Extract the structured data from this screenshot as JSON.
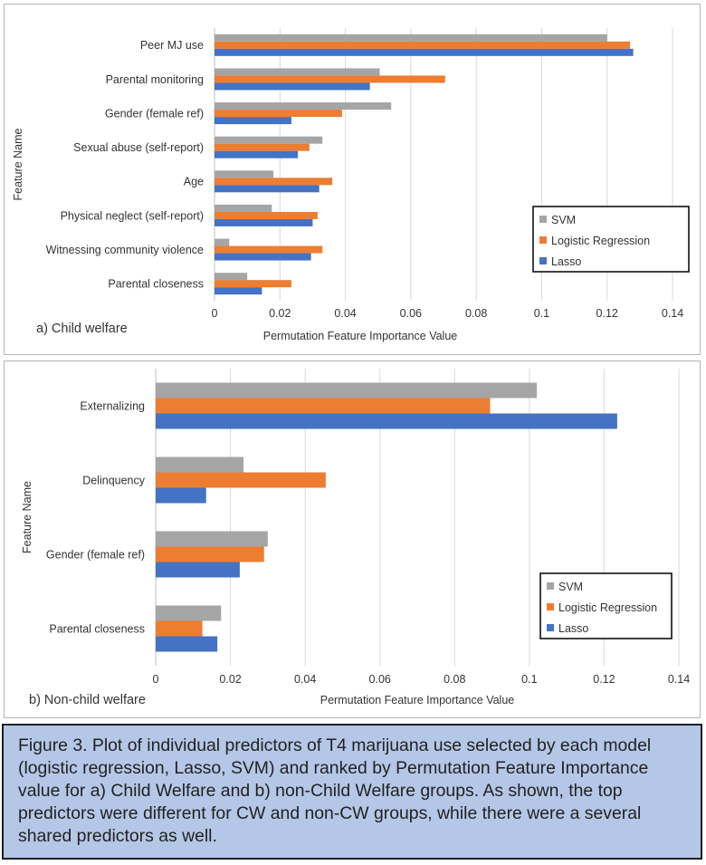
{
  "chart_data": [
    {
      "type": "bar",
      "orientation": "horizontal",
      "panel_label": "a) Child welfare",
      "xlabel": "Permutation Feature Importance Value",
      "ylabel": "Feature Name",
      "xlim": [
        0,
        0.14
      ],
      "xticks": [
        "0",
        "0.02",
        "0.04",
        "0.06",
        "0.08",
        "0.1",
        "0.12",
        "0.14"
      ],
      "grid": "vertical",
      "legend_position": "right",
      "categories": [
        "Peer MJ use",
        "Parental monitoring",
        "Gender (female ref)",
        "Sexual abuse (self-report)",
        "Age",
        "Physical neglect (self-report)",
        "Witnessing community violence",
        "Parental closeness"
      ],
      "series": [
        {
          "name": "SVM",
          "color": "#a5a5a5",
          "values": [
            0.12,
            0.0505,
            0.054,
            0.033,
            0.018,
            0.0175,
            0.0045,
            0.01
          ]
        },
        {
          "name": "Logistic Regression",
          "color": "#ed7d31",
          "values": [
            0.127,
            0.0705,
            0.039,
            0.029,
            0.036,
            0.0315,
            0.033,
            0.0235
          ]
        },
        {
          "name": "Lasso",
          "color": "#4472c4",
          "values": [
            0.128,
            0.0475,
            0.0235,
            0.0255,
            0.032,
            0.03,
            0.0295,
            0.0145
          ]
        }
      ]
    },
    {
      "type": "bar",
      "orientation": "horizontal",
      "panel_label": "b) Non-child welfare",
      "xlabel": "Permutation Feature Importance Value",
      "ylabel": "Feature Name",
      "xlim": [
        0,
        0.14
      ],
      "xticks": [
        "0",
        "0.02",
        "0.04",
        "0.06",
        "0.08",
        "0.1",
        "0.12",
        "0.14"
      ],
      "grid": "vertical",
      "legend_position": "bottom-right",
      "categories": [
        "Externalizing",
        "Delinquency",
        "Gender (female ref)",
        "Parental closeness"
      ],
      "series": [
        {
          "name": "SVM",
          "color": "#a5a5a5",
          "values": [
            0.102,
            0.0235,
            0.03,
            0.0175
          ]
        },
        {
          "name": "Logistic Regression",
          "color": "#ed7d31",
          "values": [
            0.0895,
            0.0455,
            0.029,
            0.0125
          ]
        },
        {
          "name": "Lasso",
          "color": "#4472c4",
          "values": [
            0.1235,
            0.0135,
            0.0225,
            0.0165
          ]
        }
      ]
    }
  ],
  "caption": "Figure 3. Plot of individual predictors of T4 marijuana use selected by each model (logistic regression, Lasso, SVM) and ranked by Permutation Feature Importance value for a) Child Welfare and b) non-Child Welfare groups. As shown, the top predictors were different for CW and non-CW groups, while there were a several shared predictors as well."
}
